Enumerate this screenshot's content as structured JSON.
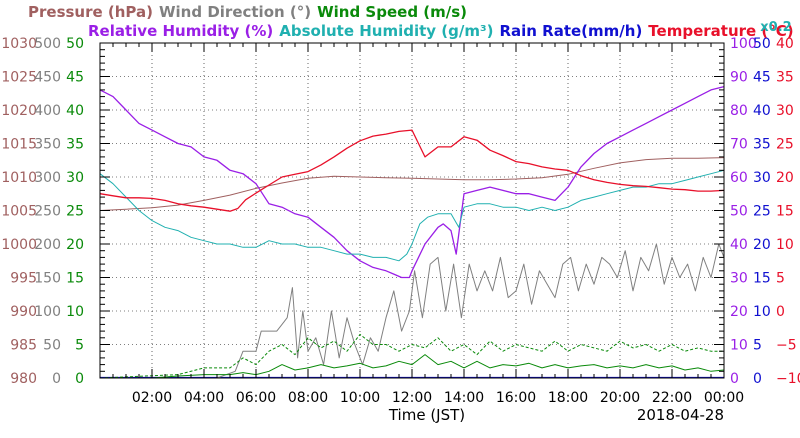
{
  "chart_data": {
    "type": "line",
    "legend_row1": [
      {
        "label": "Pressure (hPa)",
        "color": "#a06060"
      },
      {
        "label": "Wind Direction (°)",
        "color": "#808080"
      },
      {
        "label": "Wind Speed (m/s)",
        "color": "#0a8a0a"
      }
    ],
    "legend_row2": [
      {
        "label": "Relative Humidity (%)",
        "color": "#9a1fe6"
      },
      {
        "label": "Absolute Humidity (g/m³)",
        "color": "#20b0b0"
      },
      {
        "label": "Rain Rate(mm/h)",
        "color": "#1010d0"
      },
      {
        "label": "Temperature (°C)",
        "color": "#e8102a"
      }
    ],
    "scale_note": {
      "label": "x0.2",
      "color": "#20b0b0"
    },
    "xlabel": "Time (JST)",
    "date": "2018-04-28",
    "x_range": [
      "00:00",
      "24:00"
    ],
    "x_tick_labels": [
      "02:00",
      "04:00",
      "06:00",
      "08:00",
      "10:00",
      "12:00",
      "14:00",
      "16:00",
      "18:00",
      "20:00",
      "22:00",
      "00:00"
    ],
    "grid": true,
    "axes": {
      "pressure": {
        "label": "Pressure (hPa)",
        "color": "#a06060",
        "range": [
          980,
          1030
        ],
        "ticks": [
          "980",
          "985",
          "990",
          "995",
          "1000",
          "1005",
          "1010",
          "1015",
          "1020",
          "1025",
          "1030"
        ]
      },
      "wind_direction": {
        "label": "Wind Direction (°)",
        "color": "#808080",
        "range": [
          0,
          500
        ],
        "ticks": [
          "0",
          "50",
          "100",
          "150",
          "200",
          "250",
          "300",
          "350",
          "400",
          "450",
          "500"
        ]
      },
      "wind_speed": {
        "label": "Wind Speed (m/s)",
        "color": "#0a8a0a",
        "range": [
          0,
          50
        ],
        "ticks": [
          "0",
          "5",
          "10",
          "15",
          "20",
          "25",
          "30",
          "35",
          "40",
          "45",
          "50"
        ]
      },
      "humidity": {
        "label": "Relative Humidity (%)",
        "color": "#9a1fe6",
        "range": [
          0,
          100
        ],
        "ticks": [
          "0",
          "10",
          "20",
          "30",
          "40",
          "50",
          "60",
          "70",
          "80",
          "90",
          "100"
        ]
      },
      "rain_rate": {
        "label": "Rain Rate(mm/h)",
        "color": "#1010d0",
        "range": [
          0,
          50
        ],
        "ticks": [
          "0",
          "5",
          "10",
          "15",
          "20",
          "25",
          "30",
          "35",
          "40",
          "45",
          "50"
        ]
      },
      "temperature": {
        "label": "Temperature (°C)",
        "color": "#e8102a",
        "range": [
          -10,
          40
        ],
        "ticks": [
          "−10",
          "−5",
          "0",
          "5",
          "10",
          "15",
          "20",
          "25",
          "30",
          "35",
          "40"
        ]
      }
    },
    "series": [
      {
        "name": "Pressure (hPa)",
        "axis": "pressure",
        "color": "#a06060",
        "width": 1,
        "x": [
          0,
          1,
          2,
          3,
          4,
          5,
          6,
          7,
          8,
          9,
          10,
          11,
          12,
          13,
          14,
          15,
          16,
          17,
          18,
          19,
          20,
          21,
          22,
          23,
          24
        ],
        "y": [
          1005.0,
          1005.2,
          1005.4,
          1005.8,
          1006.5,
          1007.3,
          1008.3,
          1009.1,
          1009.8,
          1010.1,
          1010.0,
          1009.9,
          1009.8,
          1009.7,
          1009.6,
          1009.6,
          1009.7,
          1009.9,
          1010.4,
          1011.3,
          1012.1,
          1012.6,
          1012.8,
          1012.8,
          1012.9
        ]
      },
      {
        "name": "Relative Humidity (%)",
        "axis": "humidity",
        "color": "#9a1fe6",
        "width": 1.3,
        "x": [
          0,
          0.5,
          1,
          1.5,
          2,
          2.5,
          3,
          3.5,
          4,
          4.5,
          5,
          5.5,
          6,
          6.5,
          7,
          7.5,
          8,
          8.5,
          9,
          9.5,
          10,
          10.5,
          11,
          11.3,
          11.6,
          11.9,
          12,
          12.5,
          13,
          13.2,
          13.5,
          13.7,
          14,
          14.5,
          15,
          16,
          16.5,
          17,
          17.5,
          18,
          18.5,
          19,
          19.5,
          20,
          20.5,
          21,
          21.5,
          22,
          22.5,
          23,
          23.5,
          24
        ],
        "y": [
          86,
          84,
          80,
          76,
          74,
          72,
          70,
          69,
          66,
          65,
          62,
          61,
          58,
          52,
          51,
          49,
          48,
          45,
          42,
          38,
          35,
          33,
          32,
          31,
          30,
          30,
          32,
          40,
          45,
          46,
          44,
          37,
          55,
          56,
          57,
          55,
          55,
          54,
          53,
          57,
          63,
          67,
          70,
          72,
          74,
          76,
          78,
          80,
          82,
          84,
          86,
          87
        ]
      },
      {
        "name": "Absolute Humidity (g/m³)",
        "axis": "humidity",
        "color": "#20b0b0",
        "width": 1,
        "x": [
          0,
          0.5,
          1,
          1.5,
          2,
          2.5,
          3,
          3.5,
          4,
          4.5,
          5,
          5.5,
          6,
          6.5,
          7,
          7.5,
          8,
          8.5,
          9,
          9.5,
          10,
          10.5,
          11,
          11.5,
          11.8,
          12,
          12.3,
          12.6,
          13,
          13.5,
          13.8,
          14,
          14.5,
          15,
          15.5,
          16,
          16.5,
          17,
          17.5,
          18,
          18.5,
          19,
          19.5,
          20,
          20.5,
          21,
          21.5,
          22,
          22.5,
          23,
          23.5,
          24
        ],
        "y": [
          61,
          58,
          54,
          50,
          47,
          45,
          44,
          42,
          41,
          40,
          40,
          39,
          39,
          41,
          40,
          40,
          39,
          39,
          38,
          37,
          37,
          36,
          36,
          35,
          37,
          40,
          46,
          48,
          49,
          49,
          45,
          51,
          52,
          52,
          51,
          51,
          50,
          51,
          50,
          51,
          53,
          54,
          55,
          56,
          57,
          57,
          58,
          58,
          59,
          60,
          61,
          62
        ]
      },
      {
        "name": "Temperature (°C)",
        "axis": "temperature",
        "color": "#e8102a",
        "width": 1.3,
        "x": [
          0,
          0.5,
          1,
          1.5,
          2,
          2.5,
          3,
          3.5,
          4,
          4.5,
          5,
          5.3,
          5.6,
          6,
          6.5,
          7,
          7.5,
          8,
          8.5,
          9,
          9.5,
          10,
          10.5,
          11,
          11.5,
          12,
          12.5,
          13,
          13.5,
          14,
          14.5,
          15,
          15.5,
          16,
          16.5,
          17,
          17.5,
          18,
          18.5,
          19,
          19.5,
          20,
          20.5,
          21,
          21.5,
          22,
          22.5,
          23,
          23.5,
          24
        ],
        "y": [
          17.5,
          17.2,
          16.9,
          16.9,
          16.8,
          16.5,
          16.0,
          15.7,
          15.5,
          15.2,
          14.9,
          15.3,
          16.6,
          17.6,
          18.8,
          20.0,
          20.4,
          20.8,
          21.8,
          23.0,
          24.3,
          25.4,
          26.1,
          26.4,
          26.8,
          27.0,
          23.0,
          24.5,
          24.5,
          26.0,
          25.5,
          24.0,
          23.2,
          22.3,
          22.0,
          21.5,
          21.2,
          21.0,
          20.2,
          19.6,
          19.2,
          18.9,
          18.7,
          18.6,
          18.4,
          18.2,
          18.1,
          17.9,
          17.9,
          18.0
        ]
      },
      {
        "name": "Wind Direction (°)",
        "axis": "wind_direction",
        "color": "#808080",
        "width": 1,
        "x": [
          0,
          4.5,
          5.2,
          5.5,
          6.0,
          6.2,
          6.8,
          7.0,
          7.2,
          7.4,
          7.6,
          7.8,
          8.0,
          8.3,
          8.6,
          8.9,
          9.2,
          9.5,
          9.8,
          10.1,
          10.4,
          10.7,
          11.0,
          11.3,
          11.6,
          11.9,
          12.1,
          12.4,
          12.7,
          13.0,
          13.3,
          13.6,
          13.9,
          14.2,
          14.5,
          14.8,
          15.1,
          15.4,
          15.7,
          16.0,
          16.3,
          16.6,
          16.9,
          17.2,
          17.5,
          17.8,
          18.1,
          18.4,
          18.7,
          19.0,
          19.3,
          19.6,
          19.9,
          20.2,
          20.5,
          20.8,
          21.1,
          21.4,
          21.7,
          22.0,
          22.3,
          22.6,
          22.9,
          23.2,
          23.5,
          23.8,
          24.0
        ],
        "y": [
          0,
          0,
          10,
          40,
          40,
          70,
          70,
          80,
          90,
          135,
          30,
          100,
          40,
          60,
          20,
          100,
          30,
          90,
          50,
          20,
          60,
          40,
          90,
          130,
          70,
          100,
          160,
          90,
          170,
          180,
          100,
          170,
          90,
          170,
          130,
          160,
          130,
          180,
          120,
          130,
          170,
          110,
          160,
          140,
          120,
          170,
          180,
          130,
          170,
          140,
          180,
          170,
          150,
          190,
          130,
          180,
          160,
          200,
          140,
          180,
          150,
          170,
          130,
          180,
          150,
          200,
          180
        ]
      },
      {
        "name": "Wind Speed (m/s)",
        "axis": "wind_speed",
        "color": "#0a8a0a",
        "width": 1,
        "x": [
          0,
          2,
          3,
          4,
          5,
          5.5,
          6,
          6.5,
          7,
          7.5,
          8,
          8.5,
          9,
          9.5,
          10,
          10.5,
          11,
          11.5,
          12,
          12.5,
          13,
          13.5,
          14,
          14.5,
          15,
          15.5,
          16,
          16.5,
          17,
          17.5,
          18,
          18.5,
          19,
          19.5,
          20,
          20.5,
          21,
          21.5,
          22,
          22.5,
          23,
          23.5,
          24
        ],
        "y": [
          0,
          0,
          0.3,
          0.5,
          0.5,
          0.8,
          0.5,
          1.0,
          2.0,
          1.2,
          1.5,
          2.0,
          1.5,
          1.8,
          2.2,
          1.5,
          1.8,
          2.5,
          2.0,
          3.5,
          2.0,
          2.5,
          1.5,
          2.5,
          1.5,
          2.0,
          1.8,
          2.2,
          1.5,
          2.0,
          1.5,
          1.8,
          2.0,
          1.5,
          1.8,
          1.5,
          2.0,
          1.5,
          1.8,
          1.2,
          1.5,
          1.0,
          1.2
        ]
      },
      {
        "name": "Wind Speed (m/s) gust",
        "axis": "wind_speed",
        "color": "#0a8a0a",
        "width": 1,
        "dashed": true,
        "x": [
          0,
          3,
          4,
          5,
          5.5,
          6,
          6.5,
          7,
          7.5,
          8,
          8.5,
          9,
          9.5,
          10,
          10.5,
          11,
          11.5,
          12,
          12.5,
          13,
          13.5,
          14,
          14.5,
          15,
          15.5,
          16,
          16.5,
          17,
          17.5,
          18,
          18.5,
          19,
          19.5,
          20,
          20.5,
          21,
          21.5,
          22,
          22.5,
          23,
          23.5,
          24
        ],
        "y": [
          0,
          0.5,
          1.5,
          1.5,
          3.0,
          2.0,
          4.0,
          5.0,
          3.5,
          6.0,
          4.5,
          5.5,
          4.0,
          6.5,
          5.0,
          5.0,
          4.0,
          5.0,
          4.5,
          6.0,
          4.0,
          5.0,
          3.5,
          5.5,
          4.0,
          5.0,
          4.5,
          4.0,
          5.5,
          4.0,
          5.0,
          4.5,
          4.0,
          5.5,
          4.5,
          5.0,
          4.0,
          5.0,
          4.0,
          4.5,
          4.0,
          4.0
        ]
      }
    ]
  }
}
